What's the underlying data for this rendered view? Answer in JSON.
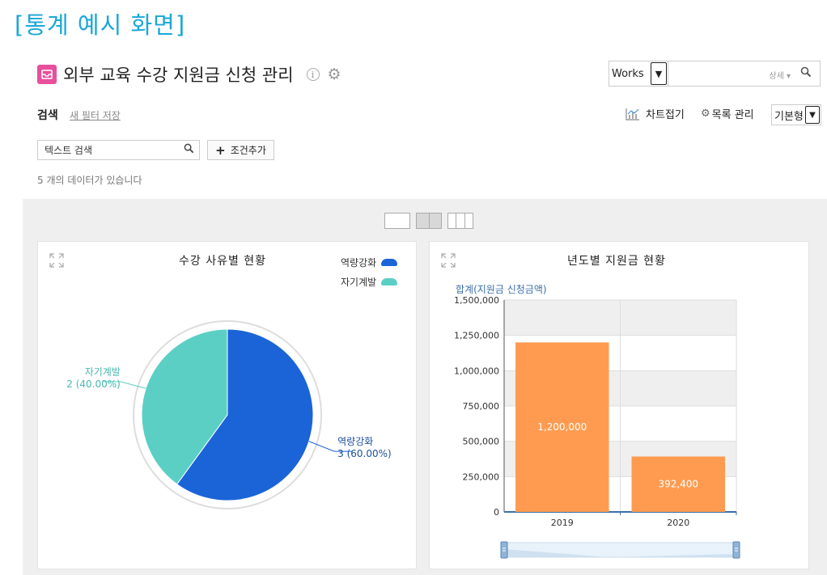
{
  "caption": "[통계 예시 화면]",
  "header": {
    "title": "외부 교육 수강 지원금 신청 관리",
    "info_glyph": "i",
    "app_select": "Works",
    "search_detail": "상세 ▾"
  },
  "toolbar": {
    "search_label": "검색",
    "new_filter": "새 필터 저장",
    "chart_fold": "차트접기",
    "list_manage": "목록 관리",
    "view_select": "기본형",
    "text_search_placeholder": "텍스트 검색",
    "add_condition": "조건추가",
    "count_text": "5 개의 데이터가 있습니다"
  },
  "colors": {
    "accent_caption": "#1aa7d9",
    "app_icon": "#e84f9c",
    "pie_blue": "#1a64d8",
    "pie_teal": "#5ccfc5",
    "bar_orange": "#ff9b50"
  },
  "chart_data": [
    {
      "type": "pie",
      "title": "수강 사유별 현황",
      "legend_placement": "top-right",
      "slices": [
        {
          "name": "역량강화",
          "value": 3,
          "percent": 60.0,
          "label": "역량강화",
          "value_label": "3 (60.00%)",
          "color": "#1a64d8"
        },
        {
          "name": "자기계발",
          "value": 2,
          "percent": 40.0,
          "label": "자기계발",
          "value_label": "2 (40.00%)",
          "color": "#5ccfc5"
        }
      ]
    },
    {
      "type": "bar",
      "title": "년도별 지원금 현황",
      "series_name": "합계(지원금 신청금액)",
      "categories": [
        "2019",
        "2020"
      ],
      "values": [
        1200000,
        392400
      ],
      "value_labels": [
        "1,200,000",
        "392,400"
      ],
      "ylim": [
        0,
        1500000
      ],
      "yticks": [
        0,
        250000,
        500000,
        750000,
        1000000,
        1250000,
        1500000
      ],
      "ytick_labels": [
        "0",
        "250,000",
        "500,000",
        "750,000",
        "1,000,000",
        "1,250,000",
        "1,500,000"
      ],
      "grid": true,
      "color": "#ff9b50"
    }
  ]
}
